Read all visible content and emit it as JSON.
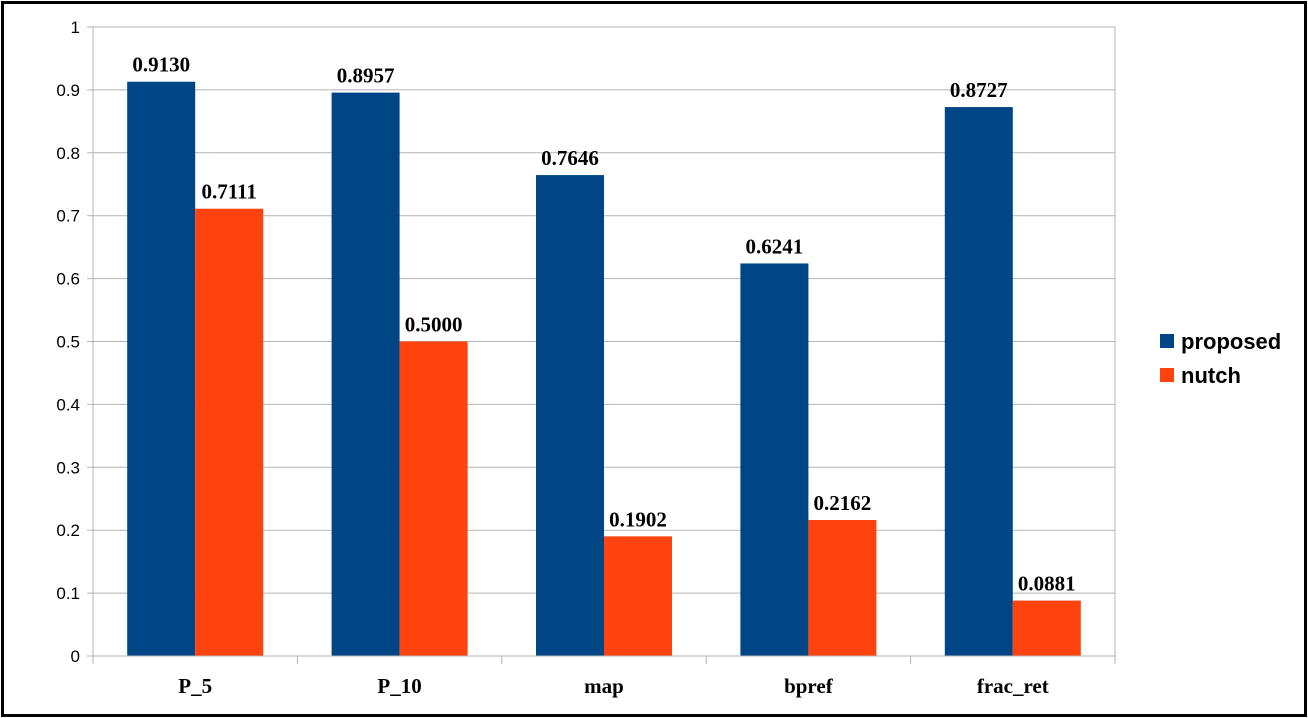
{
  "chart_data": {
    "type": "bar",
    "title": "",
    "xlabel": "",
    "ylabel": "",
    "categories": [
      "P_5",
      "P_10",
      "map",
      "bpref",
      "frac_ret"
    ],
    "series": [
      {
        "name": "proposed",
        "values": [
          0.913,
          0.8957,
          0.7646,
          0.6241,
          0.8727
        ],
        "labels": [
          "0.9130",
          "0.8957",
          "0.7646",
          "0.6241",
          "0.8727"
        ],
        "color": "#004586"
      },
      {
        "name": "nutch",
        "values": [
          0.7111,
          0.5,
          0.1902,
          0.2162,
          0.0881
        ],
        "labels": [
          "0.7111",
          "0.5000",
          "0.1902",
          "0.2162",
          "0.0881"
        ],
        "color": "#ff420e"
      }
    ],
    "ylim": [
      0,
      1
    ],
    "yticks": [
      "0",
      "0.1",
      "0.2",
      "0.3",
      "0.4",
      "0.5",
      "0.6",
      "0.7",
      "0.8",
      "0.9",
      "1"
    ],
    "grid": true,
    "legend_position": "right"
  }
}
